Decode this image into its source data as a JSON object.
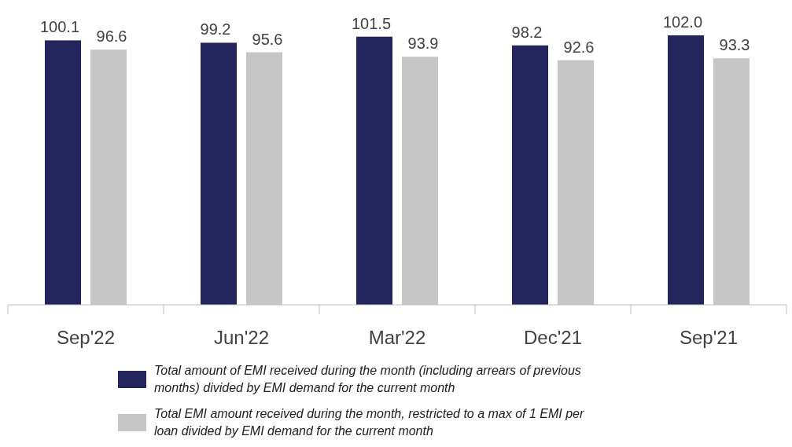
{
  "chart_data": {
    "type": "bar",
    "categories": [
      "Sep'22",
      "Jun'22",
      "Mar'22",
      "Dec'21",
      "Sep'21"
    ],
    "series": [
      {
        "name": "Total amount of EMI received during the month (including arrears of previous months) divided by EMI demand for the current month",
        "color": "#25255e",
        "values": [
          100.1,
          99.2,
          101.5,
          98.2,
          102.0
        ],
        "value_labels": [
          "100.1",
          "99.2",
          "101.5",
          "98.2",
          "102.0"
        ]
      },
      {
        "name": "Total EMI amount received during the month, restricted to a max of 1 EMI per loan divided by EMI demand for the current month",
        "color": "#c6c6c6",
        "values": [
          96.6,
          95.6,
          93.9,
          92.6,
          93.3
        ],
        "value_labels": [
          "96.6",
          "95.6",
          "93.9",
          "92.6",
          "93.3"
        ]
      }
    ],
    "legend": "bottom",
    "tick_labels": "x"
  }
}
